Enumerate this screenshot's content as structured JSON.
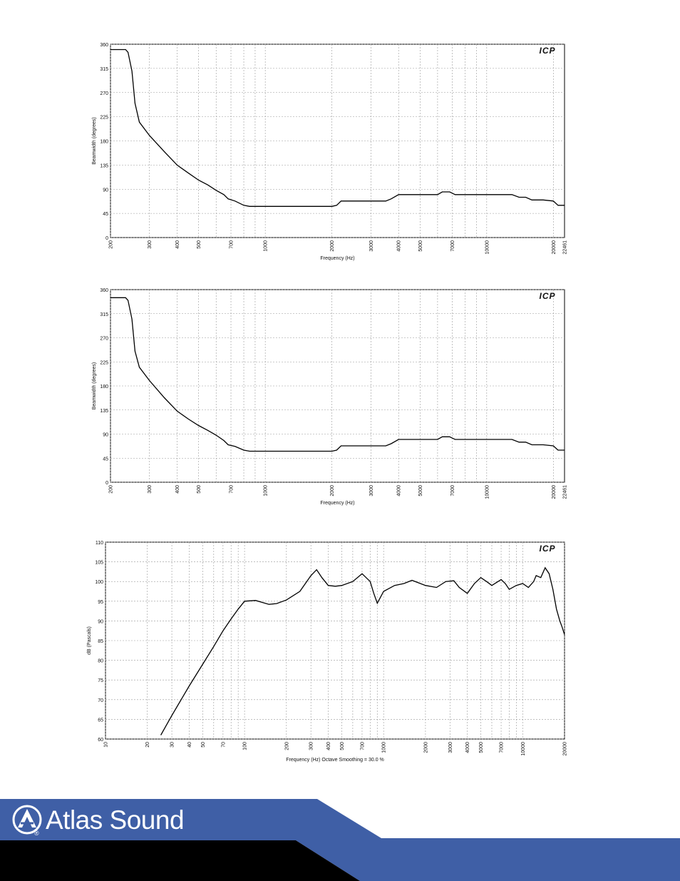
{
  "brand": {
    "name": "Atlas Sound",
    "registered_mark": "®",
    "colors": {
      "band_blue": "#3f5fa6",
      "band_black": "#000000",
      "text": "#ffffff"
    }
  },
  "watermark_text": "ICP",
  "chart_data": [
    {
      "type": "line",
      "title": "",
      "xlabel": "Frequency (Hz)",
      "ylabel": "Beamwidth (degrees)",
      "x_scale": "log",
      "xlim": [
        200,
        22461
      ],
      "ylim": [
        0,
        360
      ],
      "grid": true,
      "x_ticks": [
        200,
        300,
        400,
        500,
        700,
        1000,
        2000,
        3000,
        4000,
        5000,
        7000,
        10000,
        20000,
        22461
      ],
      "x_tick_labels": [
        "200",
        "300",
        "400",
        "500",
        "700",
        "1000",
        "2000",
        "3000",
        "4000",
        "5000",
        "7000",
        "10000",
        "20000",
        "22461"
      ],
      "y_ticks": [
        0,
        45,
        90,
        135,
        180,
        225,
        270,
        315,
        360
      ],
      "y_tick_labels": [
        "0",
        "45",
        "90",
        "135",
        "180",
        "225",
        "270",
        "315",
        "360"
      ],
      "series": [
        {
          "x": [
            200,
            234,
            240,
            250,
            258,
            270,
            300,
            350,
            400,
            450,
            500,
            550,
            600,
            650,
            680,
            730,
            800,
            850,
            1000,
            1200,
            1500,
            2000,
            2100,
            2200,
            2400,
            3000,
            3500,
            3700,
            4000,
            5000,
            6000,
            6300,
            6800,
            7200,
            8000,
            10000,
            13000,
            14000,
            15000,
            16000,
            18000,
            20000,
            21000,
            22461
          ],
          "y": [
            350,
            350,
            345,
            310,
            250,
            215,
            190,
            160,
            135,
            120,
            107,
            98,
            88,
            80,
            72,
            68,
            60,
            58,
            58,
            58,
            58,
            58,
            60,
            68,
            68,
            68,
            68,
            72,
            80,
            80,
            80,
            85,
            85,
            80,
            80,
            80,
            80,
            75,
            75,
            70,
            70,
            68,
            60,
            60
          ]
        }
      ]
    },
    {
      "type": "line",
      "title": "",
      "xlabel": "Frequency (Hz)",
      "ylabel": "Beamwidth (degrees)",
      "x_scale": "log",
      "xlim": [
        200,
        22461
      ],
      "ylim": [
        0,
        360
      ],
      "grid": true,
      "x_ticks": [
        200,
        300,
        400,
        500,
        700,
        1000,
        2000,
        3000,
        4000,
        5000,
        7000,
        10000,
        20000,
        22461
      ],
      "x_tick_labels": [
        "200",
        "300",
        "400",
        "500",
        "700",
        "1000",
        "2000",
        "3000",
        "4000",
        "5000",
        "7000",
        "10000",
        "20000",
        "22461"
      ],
      "y_ticks": [
        0,
        45,
        90,
        135,
        180,
        225,
        270,
        315,
        360
      ],
      "y_tick_labels": [
        "0",
        "45",
        "90",
        "135",
        "180",
        "225",
        "270",
        "315",
        "360"
      ],
      "series": [
        {
          "x": [
            200,
            234,
            240,
            250,
            258,
            270,
            300,
            350,
            400,
            450,
            500,
            550,
            600,
            650,
            680,
            730,
            800,
            850,
            1000,
            1200,
            1500,
            2000,
            2100,
            2200,
            2400,
            3000,
            3500,
            3700,
            4000,
            5000,
            6000,
            6300,
            6800,
            7200,
            8000,
            10000,
            13000,
            14000,
            15000,
            16000,
            18000,
            20000,
            21000,
            22461
          ],
          "y": [
            345,
            345,
            340,
            305,
            245,
            215,
            190,
            158,
            133,
            118,
            106,
            97,
            88,
            78,
            70,
            67,
            60,
            58,
            58,
            58,
            58,
            58,
            60,
            68,
            68,
            68,
            68,
            72,
            80,
            80,
            80,
            85,
            85,
            80,
            80,
            80,
            80,
            75,
            75,
            70,
            70,
            68,
            60,
            60
          ]
        }
      ]
    },
    {
      "type": "line",
      "title": "",
      "xlabel": "Frequency (Hz) Octave Smoothing = 30.0 %",
      "ylabel": "dB (Pascals)",
      "x_scale": "log",
      "xlim": [
        10,
        20000
      ],
      "ylim": [
        60,
        110
      ],
      "grid": true,
      "x_ticks": [
        10,
        20,
        30,
        40,
        50,
        70,
        100,
        200,
        300,
        400,
        500,
        700,
        1000,
        2000,
        3000,
        4000,
        5000,
        7000,
        10000,
        20000
      ],
      "x_tick_labels": [
        "10",
        "20",
        "30",
        "40",
        "50",
        "70",
        "100",
        "200",
        "300",
        "400",
        "500",
        "700",
        "1000",
        "2000",
        "3000",
        "4000",
        "5000",
        "7000",
        "10000",
        "20000"
      ],
      "y_ticks": [
        60,
        65,
        70,
        75,
        80,
        85,
        90,
        95,
        100,
        105,
        110
      ],
      "y_tick_labels": [
        "60",
        "65",
        "70",
        "75",
        "80",
        "85",
        "90",
        "95",
        "100",
        "105",
        "110"
      ],
      "series": [
        {
          "x": [
            25,
            30,
            40,
            50,
            60,
            70,
            80,
            90,
            100,
            120,
            150,
            170,
            200,
            250,
            300,
            330,
            360,
            400,
            450,
            500,
            600,
            700,
            800,
            850,
            900,
            1000,
            1200,
            1400,
            1600,
            2000,
            2400,
            2800,
            3200,
            3500,
            4000,
            4500,
            5000,
            5500,
            6000,
            7000,
            7500,
            8000,
            9000,
            10000,
            11000,
            12000,
            12500,
            13500,
            14500,
            15500,
            16500,
            17500,
            18500,
            19200,
            20000
          ],
          "y": [
            61,
            66,
            73.5,
            79,
            83.5,
            87.5,
            90.5,
            93,
            95,
            95.2,
            94.2,
            94.4,
            95.3,
            97.5,
            101.5,
            103,
            101,
            99,
            98.8,
            99,
            100,
            102,
            100,
            97,
            94.5,
            97.5,
            99,
            99.5,
            100.3,
            99,
            98.5,
            100,
            100.2,
            98.5,
            97,
            99.5,
            101,
            100,
            99,
            100.5,
            99.5,
            98,
            99,
            99.5,
            98.5,
            100,
            101.5,
            101,
            103.5,
            102,
            98,
            93,
            90,
            88.5,
            86.5
          ]
        }
      ]
    }
  ]
}
